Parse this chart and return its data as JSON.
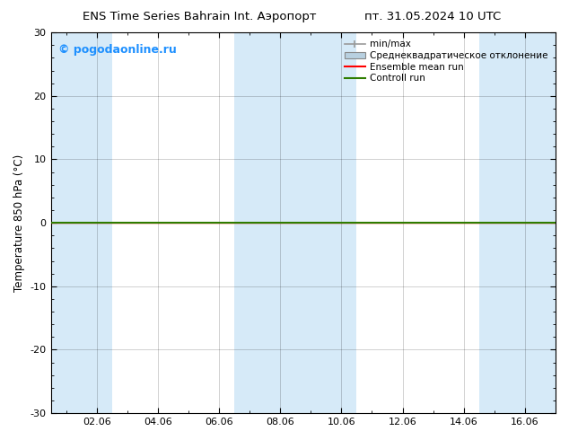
{
  "title_left": "ENS Time Series Bahrain Int. Аэропорт",
  "title_right": "пт. 31.05.2024 10 UTC",
  "ylabel": "Temperature 850 hPa (°C)",
  "ylim": [
    -30,
    30
  ],
  "yticks": [
    -30,
    -20,
    -10,
    0,
    10,
    20,
    30
  ],
  "xtick_labels": [
    "02.06",
    "04.06",
    "06.06",
    "08.06",
    "10.06",
    "12.06",
    "14.06",
    "16.06"
  ],
  "xtick_positions": [
    2,
    4,
    6,
    8,
    10,
    12,
    14,
    16
  ],
  "xmin": 0.5,
  "xmax": 17.0,
  "watermark": "© pogodaonline.ru",
  "watermark_color": "#1E90FF",
  "background_color": "#ffffff",
  "plot_bg_color": "#ffffff",
  "shaded_bands": [
    {
      "x_start": 0.5,
      "x_end": 2.5,
      "color": "#d6eaf8"
    },
    {
      "x_start": 2.5,
      "x_end": 6.5,
      "color": "#ffffff"
    },
    {
      "x_start": 6.5,
      "x_end": 10.5,
      "color": "#d6eaf8"
    },
    {
      "x_start": 10.5,
      "x_end": 14.5,
      "color": "#ffffff"
    },
    {
      "x_start": 14.5,
      "x_end": 17.0,
      "color": "#d6eaf8"
    }
  ],
  "zero_line_color": "#2e7d00",
  "zero_line_value": 0,
  "ensemble_mean_color": "#ff0000",
  "control_run_color": "#2e7d00",
  "minmax_color": "#999999",
  "stdev_color": "#b8d0e0",
  "legend_labels": [
    "min/max",
    "Среднеквадратическое отклонение",
    "Ensemble mean run",
    "Controll run"
  ],
  "legend_colors": [
    "#999999",
    "#b8d0e0",
    "#ff0000",
    "#2e7d00"
  ],
  "legend_styles": [
    "line_with_caps",
    "box",
    "line",
    "line"
  ],
  "grid_alpha": 0.25,
  "title_fontsize": 9.5,
  "tick_fontsize": 8,
  "ylabel_fontsize": 8.5,
  "legend_fontsize": 7.5,
  "watermark_fontsize": 9
}
